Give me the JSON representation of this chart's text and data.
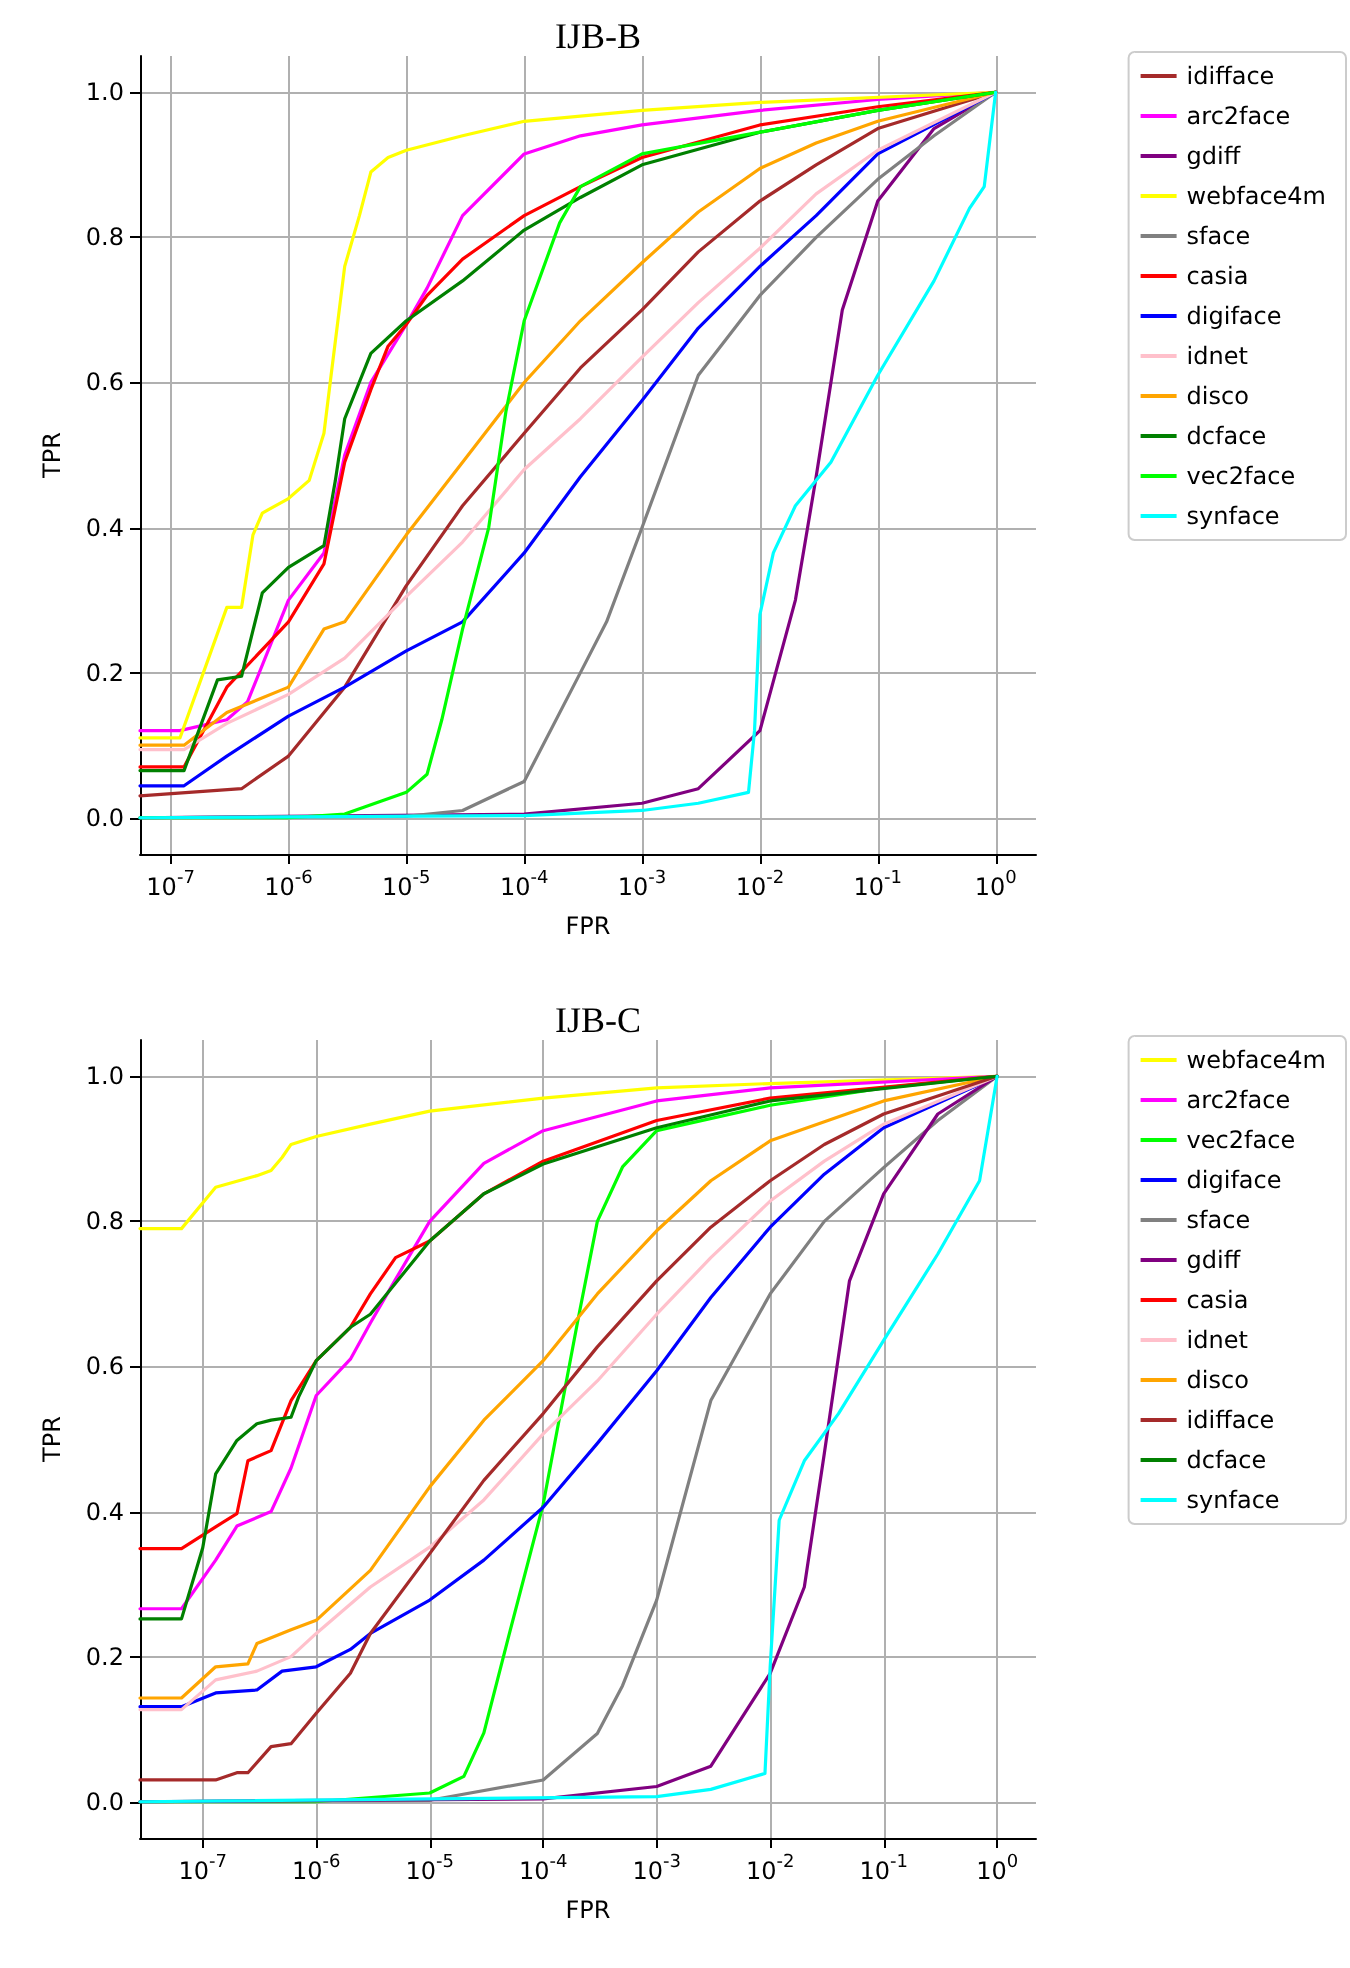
{
  "chart_data": [
    {
      "type": "line",
      "title": "IJB-B",
      "xlabel": "FPR",
      "ylabel": "TPR",
      "log": "x",
      "grid": true,
      "legend": "top right",
      "marker": "none",
      "line_style": "solid",
      "xlim": [
        5.5e-08,
        2.2
      ],
      "ylim": [
        -0.05,
        1.05
      ],
      "xticks": [
        {
          "value": 1e-07,
          "label": "10$^{-7}$"
        },
        {
          "value": 1e-06,
          "label": "10$^{-6}$"
        },
        {
          "value": 1e-05,
          "label": "10$^{-5}$"
        },
        {
          "value": 0.0001,
          "label": "10$^{-4}$"
        },
        {
          "value": 0.001,
          "label": "10$^{-3}$"
        },
        {
          "value": 0.01,
          "label": "10$^{-2}$"
        },
        {
          "value": 0.1,
          "label": "10$^{-1}$"
        },
        {
          "value": 1,
          "label": "10$^{0}$"
        }
      ],
      "yticks": [
        {
          "value": 0,
          "label": "0.0"
        },
        {
          "value": 0.2,
          "label": "0.2"
        },
        {
          "value": 0.4,
          "label": "0.4"
        },
        {
          "value": 0.6,
          "label": "0.6"
        },
        {
          "value": 0.8,
          "label": "0.8"
        },
        {
          "value": 1,
          "label": "1.0"
        }
      ],
      "series": [
        {
          "name": "idifface",
          "color": "#a52a2a",
          "x": [
            5.5e-08,
            4e-07,
            1e-06,
            3e-06,
            1e-05,
            3e-05,
            0.0001,
            0.0003,
            0.001,
            0.003,
            0.01,
            0.03,
            0.1,
            1
          ],
          "values": [
            0.03,
            0.04,
            0.085,
            0.18,
            0.32,
            0.43,
            0.53,
            0.62,
            0.7,
            0.78,
            0.85,
            0.9,
            0.95,
            1
          ]
        },
        {
          "name": "arc2face",
          "color": "#ff00ff",
          "x": [
            5.5e-08,
            1.2e-07,
            3e-07,
            4.5e-07,
            1e-06,
            2e-06,
            3e-06,
            5e-06,
            1e-05,
            1.5e-05,
            3e-05,
            0.0001,
            0.0003,
            0.001,
            0.01,
            0.1,
            1
          ],
          "values": [
            0.12,
            0.12,
            0.135,
            0.16,
            0.3,
            0.365,
            0.5,
            0.6,
            0.68,
            0.73,
            0.83,
            0.915,
            0.94,
            0.955,
            0.975,
            0.99,
            1
          ]
        },
        {
          "name": "gdiff",
          "color": "#800080",
          "x": [
            5.5e-08,
            0.0001,
            0.001,
            0.003,
            0.01,
            0.02,
            0.03,
            0.05,
            0.1,
            0.3,
            1
          ],
          "values": [
            0,
            0.005,
            0.02,
            0.04,
            0.12,
            0.3,
            0.47,
            0.7,
            0.85,
            0.95,
            1
          ]
        },
        {
          "name": "webface4m",
          "color": "#ffff00",
          "x": [
            5.5e-08,
            1.2e-07,
            3e-07,
            4e-07,
            5e-07,
            6e-07,
            1e-06,
            1.5e-06,
            2e-06,
            2.3e-06,
            3e-06,
            4e-06,
            5e-06,
            7e-06,
            1e-05,
            3e-05,
            0.0001,
            0.001,
            0.01,
            1
          ],
          "values": [
            0.11,
            0.11,
            0.29,
            0.29,
            0.39,
            0.42,
            0.44,
            0.465,
            0.53,
            0.61,
            0.76,
            0.83,
            0.89,
            0.91,
            0.92,
            0.94,
            0.96,
            0.975,
            0.986,
            1
          ]
        },
        {
          "name": "sface",
          "color": "#808080",
          "x": [
            5.5e-08,
            1e-05,
            3e-05,
            0.0001,
            0.0003,
            0.0005,
            0.001,
            0.003,
            0.01,
            0.03,
            0.1,
            0.3,
            1
          ],
          "values": [
            0,
            0.002,
            0.01,
            0.05,
            0.2,
            0.27,
            0.4,
            0.61,
            0.72,
            0.8,
            0.88,
            0.94,
            1
          ]
        },
        {
          "name": "casia",
          "color": "#ff0000",
          "x": [
            5.5e-08,
            1.3e-07,
            3e-07,
            1e-06,
            2e-06,
            3e-06,
            5e-06,
            7e-06,
            1e-05,
            1.5e-05,
            3e-05,
            0.0001,
            0.0003,
            0.001,
            0.01,
            0.1,
            1
          ],
          "values": [
            0.07,
            0.07,
            0.18,
            0.27,
            0.35,
            0.49,
            0.59,
            0.65,
            0.68,
            0.72,
            0.77,
            0.83,
            0.87,
            0.91,
            0.955,
            0.98,
            1
          ]
        },
        {
          "name": "digiface",
          "color": "#0000ff",
          "x": [
            5.5e-08,
            1.3e-07,
            3e-07,
            1e-06,
            3e-06,
            1e-05,
            3e-05,
            0.0001,
            0.0003,
            0.001,
            0.003,
            0.01,
            0.03,
            0.1,
            1
          ],
          "values": [
            0.044,
            0.044,
            0.085,
            0.14,
            0.18,
            0.23,
            0.27,
            0.365,
            0.47,
            0.575,
            0.675,
            0.76,
            0.83,
            0.915,
            1
          ]
        },
        {
          "name": "idnet",
          "color": "#ffc0cb",
          "x": [
            5.5e-08,
            1.3e-07,
            3e-07,
            1e-06,
            3e-06,
            1e-05,
            3e-05,
            0.0001,
            0.0003,
            0.001,
            0.003,
            0.01,
            0.03,
            0.1,
            1
          ],
          "values": [
            0.094,
            0.094,
            0.13,
            0.17,
            0.22,
            0.305,
            0.38,
            0.48,
            0.55,
            0.635,
            0.71,
            0.785,
            0.86,
            0.92,
            1
          ]
        },
        {
          "name": "disco",
          "color": "#ffa500",
          "x": [
            5.5e-08,
            1.3e-07,
            3e-07,
            1e-06,
            2e-06,
            3e-06,
            1e-05,
            3e-05,
            0.0001,
            0.0003,
            0.001,
            0.003,
            0.01,
            0.03,
            0.1,
            1
          ],
          "values": [
            0.1,
            0.1,
            0.145,
            0.18,
            0.26,
            0.27,
            0.39,
            0.49,
            0.6,
            0.685,
            0.765,
            0.835,
            0.895,
            0.93,
            0.96,
            1
          ]
        },
        {
          "name": "dcface",
          "color": "#008000",
          "x": [
            5.5e-08,
            1.3e-07,
            2.5e-07,
            4e-07,
            6e-07,
            1e-06,
            2e-06,
            2.5e-06,
            3e-06,
            5e-06,
            1e-05,
            3e-05,
            0.0001,
            0.0003,
            0.001,
            0.01,
            0.1,
            1
          ],
          "values": [
            0.065,
            0.065,
            0.19,
            0.195,
            0.31,
            0.345,
            0.375,
            0.465,
            0.55,
            0.64,
            0.685,
            0.74,
            0.81,
            0.855,
            0.9,
            0.945,
            0.975,
            1
          ]
        },
        {
          "name": "vec2face",
          "color": "#00ff00",
          "x": [
            5.5e-08,
            1e-06,
            3e-06,
            1e-05,
            1.5e-05,
            2e-05,
            3e-05,
            5e-05,
            7e-05,
            0.0001,
            0.0002,
            0.0003,
            0.001,
            0.01,
            0.1,
            1
          ],
          "values": [
            0,
            0,
            0.005,
            0.035,
            0.06,
            0.135,
            0.26,
            0.4,
            0.56,
            0.685,
            0.82,
            0.87,
            0.915,
            0.945,
            0.975,
            1
          ]
        },
        {
          "name": "synface",
          "color": "#00ffff",
          "x": [
            5.5e-08,
            0.0001,
            0.001,
            0.003,
            0.008,
            0.009,
            0.01,
            0.013,
            0.02,
            0.04,
            0.1,
            0.3,
            0.6,
            0.8,
            1
          ],
          "values": [
            0,
            0.003,
            0.01,
            0.02,
            0.035,
            0.12,
            0.28,
            0.365,
            0.43,
            0.49,
            0.61,
            0.74,
            0.84,
            0.87,
            1
          ]
        }
      ]
    },
    {
      "type": "line",
      "title": "IJB-C",
      "xlabel": "FPR",
      "ylabel": "TPR",
      "log": "x",
      "grid": true,
      "legend": "top right",
      "marker": "none",
      "line_style": "solid",
      "xlim": [
        2.8e-08,
        2.2
      ],
      "ylim": [
        -0.05,
        1.05
      ],
      "xticks": [
        {
          "value": 1e-07,
          "label": "10$^{-7}$"
        },
        {
          "value": 1e-06,
          "label": "10$^{-6}$"
        },
        {
          "value": 1e-05,
          "label": "10$^{-5}$"
        },
        {
          "value": 0.0001,
          "label": "10$^{-4}$"
        },
        {
          "value": 0.001,
          "label": "10$^{-3}$"
        },
        {
          "value": 0.01,
          "label": "10$^{-2}$"
        },
        {
          "value": 0.1,
          "label": "10$^{-1}$"
        },
        {
          "value": 1,
          "label": "10$^{0}$"
        }
      ],
      "yticks": [
        {
          "value": 0,
          "label": "0.0"
        },
        {
          "value": 0.2,
          "label": "0.2"
        },
        {
          "value": 0.4,
          "label": "0.4"
        },
        {
          "value": 0.6,
          "label": "0.6"
        },
        {
          "value": 0.8,
          "label": "0.8"
        },
        {
          "value": 1,
          "label": "1.0"
        }
      ],
      "series": [
        {
          "name": "webface4m",
          "color": "#ffff00",
          "x": [
            2.8e-08,
            6.5e-08,
            1.3e-07,
            3e-07,
            4e-07,
            5e-07,
            6e-07,
            1e-06,
            3e-06,
            1e-05,
            0.0001,
            0.001,
            0.01,
            1
          ],
          "values": [
            0.79,
            0.79,
            0.847,
            0.863,
            0.87,
            0.888,
            0.906,
            0.917,
            0.934,
            0.952,
            0.97,
            0.984,
            0.99,
            1
          ]
        },
        {
          "name": "arc2face",
          "color": "#ff00ff",
          "x": [
            2.8e-08,
            6.5e-08,
            1.3e-07,
            2e-07,
            4e-07,
            6e-07,
            1e-06,
            2e-06,
            3e-06,
            5e-06,
            1e-05,
            3e-05,
            0.0001,
            0.001,
            0.01,
            1
          ],
          "values": [
            0.266,
            0.266,
            0.333,
            0.38,
            0.4,
            0.46,
            0.56,
            0.61,
            0.66,
            0.72,
            0.8,
            0.88,
            0.925,
            0.966,
            0.984,
            1
          ]
        },
        {
          "name": "vec2face",
          "color": "#00ff00",
          "x": [
            2.8e-08,
            1e-06,
            1e-05,
            2e-05,
            3e-05,
            5e-05,
            0.0001,
            0.0002,
            0.0003,
            0.0005,
            0.001,
            0.01,
            0.1,
            1
          ],
          "values": [
            0,
            0,
            0.012,
            0.035,
            0.095,
            0.23,
            0.41,
            0.66,
            0.8,
            0.875,
            0.925,
            0.96,
            0.984,
            1
          ]
        },
        {
          "name": "digiface",
          "color": "#0000ff",
          "x": [
            2.8e-08,
            6.5e-08,
            1.3e-07,
            3e-07,
            5e-07,
            1e-06,
            2e-06,
            3e-06,
            1e-05,
            3e-05,
            0.0001,
            0.0003,
            0.001,
            0.003,
            0.01,
            0.03,
            0.1,
            1
          ],
          "values": [
            0.131,
            0.131,
            0.15,
            0.154,
            0.18,
            0.186,
            0.21,
            0.232,
            0.278,
            0.333,
            0.406,
            0.494,
            0.594,
            0.695,
            0.792,
            0.865,
            0.929,
            1
          ]
        },
        {
          "name": "sface",
          "color": "#808080",
          "x": [
            2.8e-08,
            1e-05,
            0.0001,
            0.0003,
            0.0005,
            0.001,
            0.003,
            0.01,
            0.03,
            0.1,
            0.3,
            1
          ],
          "values": [
            0,
            0.002,
            0.03,
            0.094,
            0.16,
            0.278,
            0.553,
            0.7,
            0.8,
            0.874,
            0.939,
            1
          ]
        },
        {
          "name": "gdiff",
          "color": "#800080",
          "x": [
            2.8e-08,
            0.0001,
            0.001,
            0.003,
            0.01,
            0.02,
            0.03,
            0.05,
            0.1,
            0.3,
            1
          ],
          "values": [
            0,
            0.004,
            0.021,
            0.049,
            0.177,
            0.296,
            0.48,
            0.718,
            0.838,
            0.948,
            1
          ]
        },
        {
          "name": "casia",
          "color": "#ff0000",
          "x": [
            2.8e-08,
            6.5e-08,
            1.3e-07,
            2e-07,
            2.5e-07,
            4e-07,
            6e-07,
            1e-06,
            2e-06,
            3e-06,
            5e-06,
            1e-05,
            3e-05,
            0.0001,
            0.001,
            0.01,
            1
          ],
          "values": [
            0.349,
            0.349,
            0.379,
            0.397,
            0.47,
            0.484,
            0.553,
            0.608,
            0.654,
            0.7,
            0.75,
            0.773,
            0.838,
            0.883,
            0.939,
            0.97,
            1
          ]
        },
        {
          "name": "idnet",
          "color": "#ffc0cb",
          "x": [
            2.8e-08,
            6.5e-08,
            1.3e-07,
            3e-07,
            6e-07,
            1e-06,
            3e-06,
            1e-05,
            3e-05,
            0.0001,
            0.0003,
            0.001,
            0.003,
            0.01,
            0.03,
            0.1,
            1
          ],
          "values": [
            0.127,
            0.127,
            0.168,
            0.18,
            0.2,
            0.232,
            0.296,
            0.351,
            0.416,
            0.507,
            0.58,
            0.672,
            0.75,
            0.828,
            0.883,
            0.934,
            1
          ]
        },
        {
          "name": "disco",
          "color": "#ffa500",
          "x": [
            2.8e-08,
            6.5e-08,
            1.3e-07,
            2.5e-07,
            3e-07,
            6e-07,
            1e-06,
            3e-06,
            1e-05,
            3e-05,
            0.0001,
            0.0003,
            0.001,
            0.003,
            0.01,
            0.1,
            1
          ],
          "values": [
            0.143,
            0.143,
            0.186,
            0.19,
            0.218,
            0.237,
            0.25,
            0.319,
            0.434,
            0.526,
            0.608,
            0.7,
            0.787,
            0.856,
            0.911,
            0.966,
            1
          ]
        },
        {
          "name": "idifface",
          "color": "#a52a2a",
          "x": [
            2.8e-08,
            1.3e-07,
            2e-07,
            2.5e-07,
            4e-07,
            6e-07,
            1e-06,
            2e-06,
            3e-06,
            1e-05,
            3e-05,
            0.0001,
            0.0003,
            0.001,
            0.003,
            0.01,
            0.03,
            0.1,
            1
          ],
          "values": [
            0.03,
            0.03,
            0.04,
            0.04,
            0.076,
            0.08,
            0.122,
            0.177,
            0.232,
            0.342,
            0.443,
            0.535,
            0.627,
            0.718,
            0.792,
            0.856,
            0.906,
            0.948,
            1
          ]
        },
        {
          "name": "dcface",
          "color": "#008000",
          "x": [
            2.8e-08,
            6.5e-08,
            1e-07,
            1.3e-07,
            2e-07,
            3e-07,
            4e-07,
            6e-07,
            7e-07,
            1e-06,
            2e-06,
            3e-06,
            1e-05,
            3e-05,
            0.0001,
            0.001,
            0.01,
            1
          ],
          "values": [
            0.252,
            0.252,
            0.35,
            0.452,
            0.498,
            0.521,
            0.526,
            0.53,
            0.558,
            0.608,
            0.654,
            0.672,
            0.773,
            0.838,
            0.879,
            0.929,
            0.966,
            1
          ]
        },
        {
          "name": "synface",
          "color": "#00ffff",
          "x": [
            2.8e-08,
            0.001,
            0.003,
            0.009,
            0.01,
            0.012,
            0.02,
            0.04,
            0.1,
            0.3,
            0.7,
            1
          ],
          "values": [
            0,
            0.007,
            0.017,
            0.039,
            0.186,
            0.388,
            0.47,
            0.535,
            0.636,
            0.755,
            0.856,
            1
          ]
        }
      ]
    }
  ]
}
